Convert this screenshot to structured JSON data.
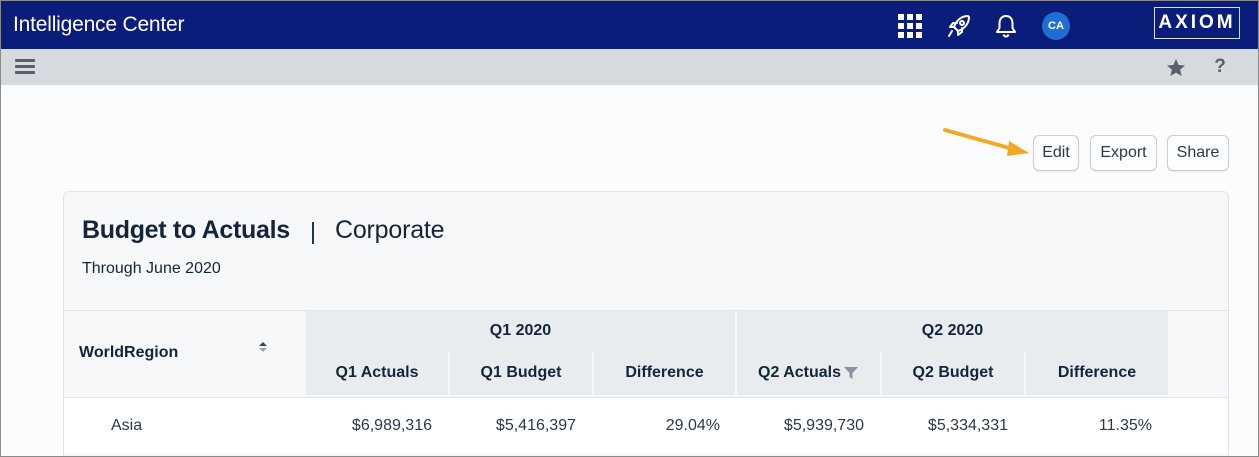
{
  "app": {
    "title": "Intelligence Center"
  },
  "header": {
    "avatar_initials": "CA",
    "logo_text": "AXIOM",
    "icons": [
      "apps-grid-icon",
      "rocket-icon",
      "bell-icon"
    ]
  },
  "toolbar": {
    "icons": [
      "menu-icon",
      "star-icon",
      "help-icon"
    ],
    "help_label": "?"
  },
  "actions": {
    "edit_label": "Edit",
    "export_label": "Export",
    "share_label": "Share"
  },
  "report": {
    "title": "Budget to Actuals",
    "separator": "|",
    "subtitle": "Corporate",
    "date_range": "Through June 2020"
  },
  "table": {
    "row_header": "WorldRegion",
    "groups": [
      "Q1 2020",
      "Q2 2020"
    ],
    "columns": [
      "Q1 Actuals",
      "Q1 Budget",
      "Difference",
      "Q2 Actuals",
      "Q2 Budget",
      "Difference"
    ],
    "rows": [
      {
        "region": "Asia",
        "values": [
          "$6,989,316",
          "$5,416,397",
          "29.04%",
          "$5,939,730",
          "$5,334,331",
          "11.35%"
        ]
      }
    ]
  },
  "colors": {
    "header_bg": "#0b1d7b",
    "accent_arrow": "#f5a623",
    "avatar_bg": "#1e6fd1"
  }
}
